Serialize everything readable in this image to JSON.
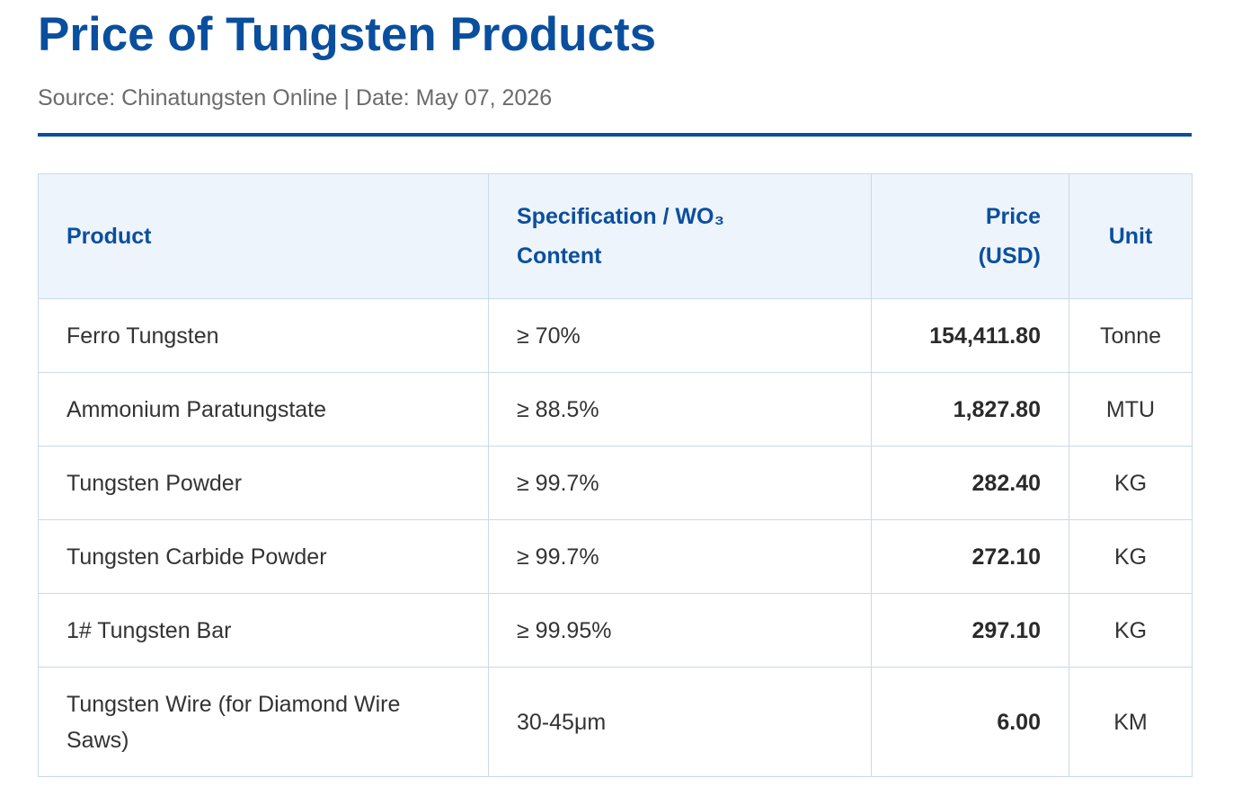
{
  "header": {
    "title": "Price of Tungsten Products",
    "subtitle": "Source: Chinatungsten Online | Date: May 07, 2026"
  },
  "table": {
    "columns": {
      "product": "Product",
      "spec_line1": "Specification / WO₃",
      "spec_line2": "Content",
      "price_line1": "Price",
      "price_line2": "(USD)",
      "unit": "Unit"
    },
    "rows": [
      {
        "product": "Ferro Tungsten",
        "spec": "≥ 70%",
        "price": "154,411.80",
        "unit": "Tonne"
      },
      {
        "product": "Ammonium Paratungstate",
        "spec": "≥ 88.5%",
        "price": "1,827.80",
        "unit": "MTU"
      },
      {
        "product": "Tungsten Powder",
        "spec": "≥ 99.7%",
        "price": "282.40",
        "unit": "KG"
      },
      {
        "product": "Tungsten Carbide Powder",
        "spec": "≥ 99.7%",
        "price": "272.10",
        "unit": "KG"
      },
      {
        "product": "1# Tungsten Bar",
        "spec": "≥ 99.95%",
        "price": "297.10",
        "unit": "KG"
      },
      {
        "product": "Tungsten Wire (for Diamond Wire Saws)",
        "spec": "30-45μm",
        "price": "6.00",
        "unit": "KM"
      }
    ]
  },
  "colors": {
    "accent": "#0a4f9e",
    "header_bg": "#eef4fb",
    "border": "#c9d9ea",
    "subtitle": "#6b6b6b"
  }
}
